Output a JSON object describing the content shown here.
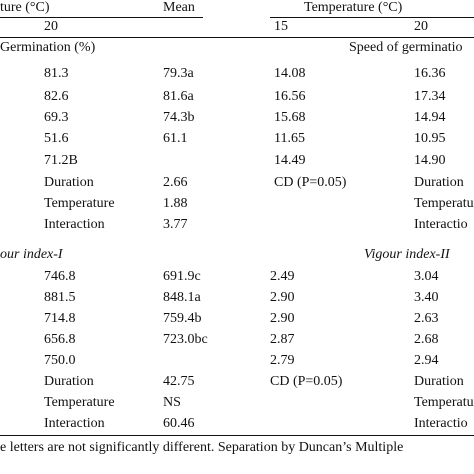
{
  "header": {
    "temp_left": "ture (°C)",
    "temp_right": "Temperature (°C)",
    "mean": "Mean",
    "col20_left": "20",
    "col15_right": "15",
    "col20_right": "20"
  },
  "section1": {
    "title_left": "Germination (%)",
    "title_right": "Speed of germinatio",
    "rows": [
      {
        "c20": "81.3",
        "mean": "79.3a",
        "r15": "14.08",
        "r20": "16.36"
      },
      {
        "c20": "82.6",
        "mean": "81.6a",
        "r15": "16.56",
        "r20": "17.34"
      },
      {
        "c20": "69.3",
        "mean": "74.3b",
        "r15": "15.68",
        "r20": "14.94"
      },
      {
        "c20": "51.6",
        "mean": "61.1",
        "r15": "11.65",
        "r20": "10.95"
      },
      {
        "c20": "71.2B",
        "mean": "",
        "r15": "14.49",
        "r20": "14.90"
      }
    ],
    "cd_label": "CD (P=0.05)",
    "cd": [
      {
        "label": "Duration",
        "value": "2.66",
        "right": "Duration"
      },
      {
        "label": "Temperature",
        "value": "1.88",
        "right": "Temperatur"
      },
      {
        "label": "Interaction",
        "value": "3.77",
        "right": "Interactio"
      }
    ]
  },
  "section2": {
    "title_left": "our index-I",
    "title_right": "Vigour index-II",
    "rows": [
      {
        "c20": "746.8",
        "mean": "691.9c",
        "r15": "2.49",
        "r20": "3.04"
      },
      {
        "c20": "881.5",
        "mean": "848.1a",
        "r15": "2.90",
        "r20": "3.40"
      },
      {
        "c20": "714.8",
        "mean": "759.4b",
        "r15": "2.90",
        "r20": "2.63"
      },
      {
        "c20": "656.8",
        "mean": "723.0bc",
        "r15": "2.87",
        "r20": "2.68"
      },
      {
        "c20": "750.0",
        "mean": "",
        "r15": "2.79",
        "r20": "2.94"
      }
    ],
    "cd_label": "CD (P=0.05)",
    "cd": [
      {
        "label": "Duration",
        "value": "42.75",
        "right": "Duration"
      },
      {
        "label": "Temperature",
        "value": "NS",
        "right": "Temperatur"
      },
      {
        "label": "Interaction",
        "value": "60.46",
        "right": "Interactio"
      }
    ]
  },
  "footnote": "e letters are not significantly different. Separation by Duncan’s Multiple"
}
